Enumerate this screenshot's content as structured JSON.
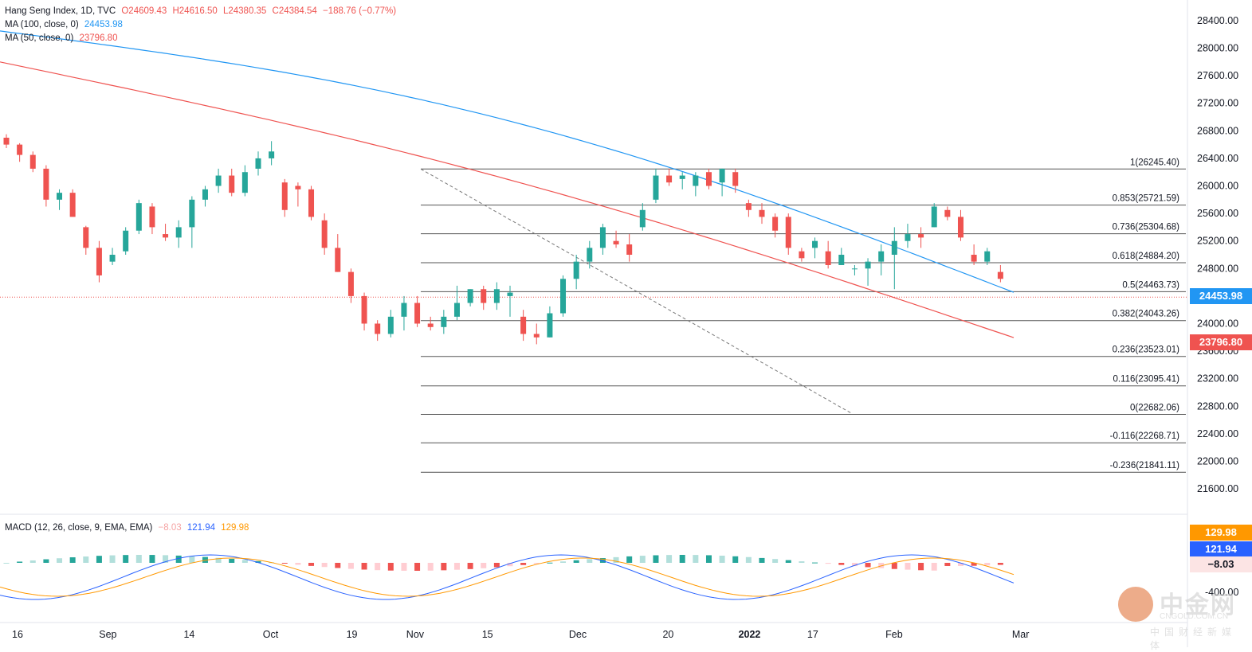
{
  "header": {
    "symbol": "Hang Seng Index, 1D, TVC",
    "open": "O24609.43",
    "high": "H24616.50",
    "low": "L24380.35",
    "close": "C24384.54",
    "change": "−188.76 (−0.77%)",
    "ma100_label": "MA (100, close, 0)",
    "ma100_value": "24453.98",
    "ma50_label": "MA (50, close, 0)",
    "ma50_value": "23796.80",
    "macd_label": "MACD (12, 26, close, 9, EMA, EMA)",
    "macd_hist": "−8.03",
    "macd_line": "121.94",
    "macd_signal": "129.98"
  },
  "price_tags": {
    "ma100": "24453.98",
    "ma50": "23796.80",
    "signal": "129.98",
    "macd": "121.94",
    "hist": "−8.03"
  },
  "colors": {
    "up": "#26a69a",
    "down": "#ef5350",
    "ma100": "#2196f3",
    "ma50": "#ef5350",
    "signal": "#ff9800",
    "macd": "#2962ff"
  },
  "watermark": {
    "brand": "中金网",
    "domain": "CNGOLD.COM.CN",
    "tagline": "中国财经新媒体"
  },
  "chart_data": {
    "type": "candlestick",
    "title": "Hang Seng Index, 1D, TVC",
    "y_ticks": [
      21600,
      22000,
      22400,
      22800,
      23200,
      23600,
      24000,
      24400,
      24800,
      25200,
      25600,
      26000,
      26400,
      26800,
      27200,
      27600,
      28000,
      28400
    ],
    "y_tick_labels": [
      "21600.00",
      "22000.00",
      "22400.00",
      "22800.00",
      "23200.00",
      "23600.00",
      "24000.00",
      "24400.00",
      "24800.00",
      "25200.00",
      "25600.00",
      "26000.00",
      "26400.00",
      "26800.00",
      "27200.00",
      "27600.00",
      "28000.00",
      "28400.00"
    ],
    "ylim": [
      21300,
      28700
    ],
    "x_labels": [
      "16",
      "Sep",
      "14",
      "Oct",
      "19",
      "Nov",
      "15",
      "Dec",
      "20",
      "2022",
      "17",
      "Feb",
      "Mar"
    ],
    "x_label_index": [
      0,
      10,
      19,
      28,
      37,
      44,
      52,
      62,
      72,
      81,
      88,
      97,
      111
    ],
    "ohlc": [
      [
        26700,
        26750,
        26550,
        26600
      ],
      [
        26600,
        26620,
        26350,
        26450
      ],
      [
        26450,
        26500,
        26200,
        26250
      ],
      [
        26250,
        26300,
        25700,
        25800
      ],
      [
        25800,
        25950,
        25650,
        25900
      ],
      [
        25900,
        25950,
        25550,
        25550
      ],
      [
        25400,
        25420,
        25000,
        25100
      ],
      [
        25100,
        25200,
        24600,
        24700
      ],
      [
        24900,
        25100,
        24850,
        25000
      ],
      [
        25050,
        25400,
        25000,
        25350
      ],
      [
        25350,
        25800,
        25300,
        25750
      ],
      [
        25700,
        25750,
        25300,
        25400
      ],
      [
        25300,
        25450,
        25200,
        25250
      ],
      [
        25250,
        25500,
        25100,
        25400
      ],
      [
        25400,
        25850,
        25100,
        25800
      ],
      [
        25800,
        26000,
        25700,
        25950
      ],
      [
        26000,
        26250,
        25900,
        26150
      ],
      [
        26150,
        26250,
        25850,
        25900
      ],
      [
        25900,
        26300,
        25850,
        26200
      ],
      [
        26250,
        26500,
        26150,
        26400
      ],
      [
        26400,
        26650,
        26300,
        26500
      ],
      [
        26050,
        26100,
        25550,
        25650
      ],
      [
        26000,
        26050,
        25700,
        25950
      ],
      [
        25950,
        26000,
        25500,
        25550
      ],
      [
        25500,
        25600,
        25000,
        25100
      ],
      [
        25100,
        25300,
        24750,
        24750
      ],
      [
        24750,
        24800,
        24300,
        24400
      ],
      [
        24400,
        24450,
        23900,
        24000
      ],
      [
        24000,
        24050,
        23750,
        23850
      ],
      [
        23850,
        24200,
        23800,
        24100
      ],
      [
        24100,
        24400,
        23900,
        24300
      ],
      [
        24300,
        24400,
        23950,
        24000
      ],
      [
        24000,
        24100,
        23900,
        23950
      ],
      [
        23950,
        24200,
        23850,
        24100
      ],
      [
        24100,
        24550,
        24050,
        24300
      ],
      [
        24300,
        24500,
        24250,
        24500
      ],
      [
        24500,
        24550,
        24200,
        24300
      ],
      [
        24300,
        24600,
        24200,
        24500
      ],
      [
        24400,
        24550,
        24100,
        24450
      ],
      [
        24100,
        24200,
        23750,
        23850
      ],
      [
        23850,
        24000,
        23700,
        23800
      ],
      [
        23800,
        24250,
        23800,
        24150
      ],
      [
        24150,
        24700,
        24100,
        24650
      ],
      [
        24650,
        25000,
        24500,
        24900
      ],
      [
        24900,
        25200,
        24800,
        25100
      ],
      [
        25100,
        25450,
        25000,
        25400
      ],
      [
        25200,
        25350,
        25100,
        25150
      ],
      [
        25150,
        25300,
        24900,
        25000
      ],
      [
        25400,
        25750,
        25350,
        25650
      ],
      [
        25800,
        26250,
        25750,
        26150
      ],
      [
        26150,
        26250,
        26000,
        26050
      ],
      [
        26100,
        26200,
        25950,
        26150
      ],
      [
        26000,
        26200,
        25850,
        26150
      ],
      [
        26200,
        26250,
        25950,
        26000
      ],
      [
        26050,
        26250,
        25850,
        26250
      ],
      [
        26200,
        26250,
        25900,
        26000
      ],
      [
        25750,
        25800,
        25550,
        25650
      ],
      [
        25650,
        25750,
        25450,
        25550
      ],
      [
        25550,
        25600,
        25250,
        25350
      ],
      [
        25550,
        25600,
        25000,
        25100
      ],
      [
        25050,
        25100,
        24900,
        24950
      ],
      [
        25100,
        25250,
        24950,
        25200
      ],
      [
        25050,
        25200,
        24800,
        24850
      ],
      [
        24850,
        25100,
        24850,
        25000
      ],
      [
        24800,
        24850,
        24700,
        24800
      ],
      [
        24800,
        24950,
        24550,
        24900
      ],
      [
        24900,
        25150,
        24700,
        25050
      ],
      [
        25000,
        25400,
        24500,
        25200
      ],
      [
        25200,
        25450,
        25100,
        25300
      ],
      [
        25300,
        25400,
        25100,
        25250
      ],
      [
        25400,
        25750,
        25400,
        25700
      ],
      [
        25650,
        25700,
        25500,
        25550
      ],
      [
        25550,
        25650,
        25200,
        25250
      ],
      [
        25000,
        25150,
        24850,
        24900
      ],
      [
        24900,
        25100,
        24850,
        25050
      ],
      [
        24750,
        24850,
        24600,
        24650
      ]
    ],
    "series": [
      {
        "name": "MA (100, close, 0)",
        "last": 24453.98
      },
      {
        "name": "MA (50, close, 0)",
        "last": 23796.8
      }
    ],
    "fibonacci": [
      {
        "label": "1(26245.40)",
        "value": 26245.4
      },
      {
        "label": "0.853(25721.59)",
        "value": 25721.59
      },
      {
        "label": "0.736(25304.68)",
        "value": 25304.68
      },
      {
        "label": "0.618(24884.20)",
        "value": 24884.2
      },
      {
        "label": "0.5(24463.73)",
        "value": 24463.73
      },
      {
        "label": "0.382(24043.26)",
        "value": 24043.26
      },
      {
        "label": "0.236(23523.01)",
        "value": 23523.01
      },
      {
        "label": "0.116(23095.41)",
        "value": 23095.41
      },
      {
        "label": "0(22682.06)",
        "value": 22682.06
      },
      {
        "label": "-0.116(22268.71)",
        "value": 22268.71
      },
      {
        "label": "-0.236(21841.11)",
        "value": 21841.11
      }
    ],
    "macd_tick": "-400.00",
    "macd_last": {
      "macd": 121.94,
      "signal": 129.98,
      "hist": -8.03
    }
  }
}
